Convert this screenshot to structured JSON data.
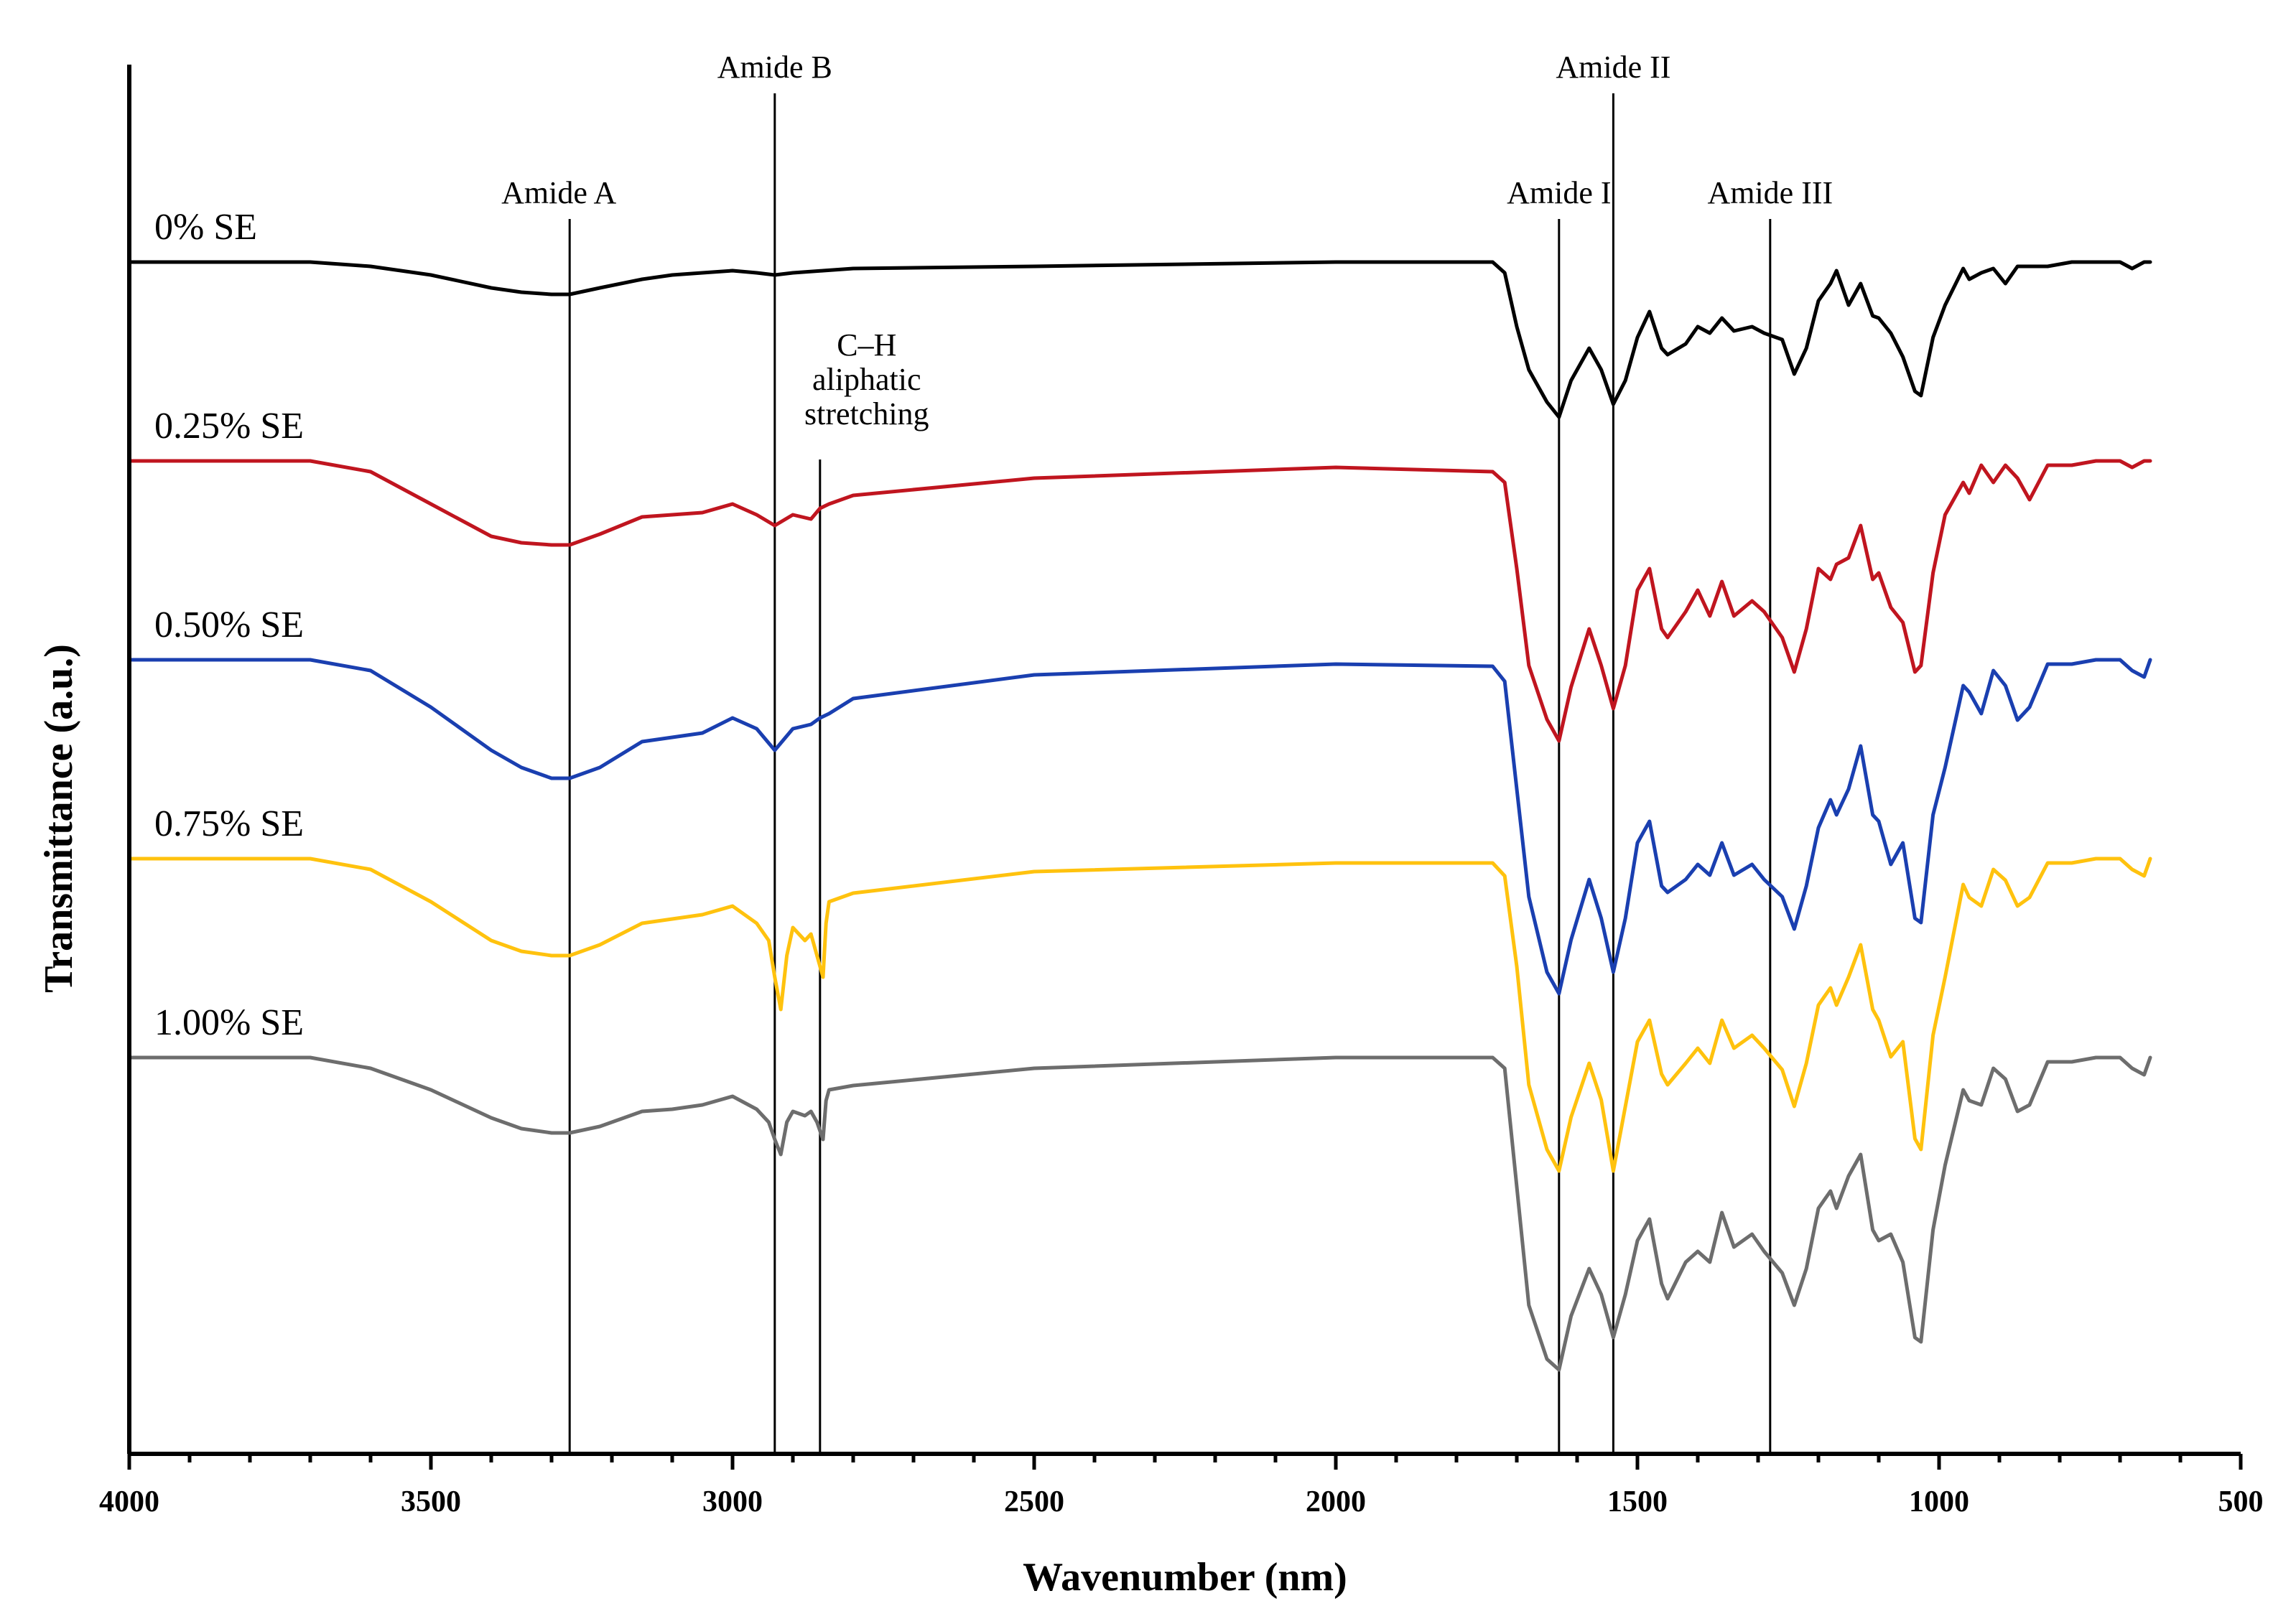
{
  "chart_data": {
    "type": "line",
    "title": "",
    "xlabel": "Wavenumber (nm)",
    "ylabel": "Transmittance (a.u.)",
    "xlim": [
      4000,
      500
    ],
    "x_ticks": [
      4000,
      3500,
      3000,
      2500,
      2000,
      1500,
      1000,
      500
    ],
    "y_units": "a.u. (stacked, offset traces)",
    "ylim": [
      -8,
      1
    ],
    "grid": false,
    "legend": "inline labels at left of each trace",
    "series": [
      {
        "name": "0% SE",
        "color": "#000000",
        "offset": 0,
        "x": [
          4000,
          3700,
          3600,
          3500,
          3400,
          3350,
          3300,
          3270,
          3220,
          3150,
          3100,
          3050,
          3000,
          2960,
          2930,
          2900,
          2850,
          2800,
          2500,
          2000,
          1740,
          1720,
          1700,
          1680,
          1650,
          1630,
          1610,
          1580,
          1560,
          1540,
          1520,
          1500,
          1480,
          1460,
          1450,
          1420,
          1400,
          1380,
          1360,
          1340,
          1310,
          1290,
          1260,
          1240,
          1220,
          1200,
          1180,
          1170,
          1150,
          1130,
          1110,
          1100,
          1080,
          1060,
          1040,
          1030,
          1010,
          990,
          960,
          950,
          930,
          910,
          890,
          870,
          850,
          820,
          780,
          740,
          700,
          680,
          660,
          650
        ],
        "y": [
          0,
          0,
          -0.02,
          -0.06,
          -0.12,
          -0.14,
          -0.15,
          -0.15,
          -0.12,
          -0.08,
          -0.06,
          -0.05,
          -0.04,
          -0.05,
          -0.06,
          -0.05,
          -0.04,
          -0.03,
          -0.02,
          0,
          0,
          -0.05,
          -0.3,
          -0.5,
          -0.65,
          -0.72,
          -0.55,
          -0.4,
          -0.5,
          -0.66,
          -0.55,
          -0.35,
          -0.23,
          -0.4,
          -0.43,
          -0.38,
          -0.3,
          -0.33,
          -0.26,
          -0.32,
          -0.3,
          -0.33,
          -0.36,
          -0.52,
          -0.4,
          -0.18,
          -0.1,
          -0.04,
          -0.2,
          -0.1,
          -0.25,
          -0.26,
          -0.33,
          -0.44,
          -0.6,
          -0.62,
          -0.35,
          -0.2,
          -0.03,
          -0.08,
          -0.05,
          -0.03,
          -0.1,
          -0.02,
          -0.02,
          -0.02,
          0,
          0,
          0,
          -0.03,
          0,
          0
        ]
      },
      {
        "name": "0.25% SE",
        "color": "#C0151F",
        "offset": -1,
        "x": [
          4000,
          3700,
          3600,
          3500,
          3400,
          3350,
          3300,
          3270,
          3220,
          3150,
          3100,
          3050,
          3000,
          2960,
          2930,
          2900,
          2870,
          2855,
          2840,
          2800,
          2500,
          2000,
          1740,
          1720,
          1700,
          1680,
          1650,
          1630,
          1610,
          1580,
          1560,
          1540,
          1520,
          1500,
          1480,
          1460,
          1450,
          1420,
          1400,
          1380,
          1360,
          1340,
          1310,
          1290,
          1260,
          1240,
          1220,
          1200,
          1180,
          1170,
          1150,
          1130,
          1110,
          1100,
          1080,
          1060,
          1040,
          1030,
          1010,
          990,
          960,
          950,
          930,
          910,
          890,
          870,
          850,
          820,
          780,
          740,
          700,
          680,
          660,
          650
        ],
        "y": [
          0,
          0,
          -0.05,
          -0.2,
          -0.35,
          -0.38,
          -0.39,
          -0.39,
          -0.34,
          -0.26,
          -0.25,
          -0.24,
          -0.2,
          -0.25,
          -0.3,
          -0.25,
          -0.27,
          -0.22,
          -0.2,
          -0.16,
          -0.08,
          -0.03,
          -0.05,
          -0.1,
          -0.5,
          -0.95,
          -1.2,
          -1.3,
          -1.05,
          -0.78,
          -0.95,
          -1.15,
          -0.95,
          -0.6,
          -0.5,
          -0.78,
          -0.82,
          -0.7,
          -0.6,
          -0.72,
          -0.56,
          -0.72,
          -0.65,
          -0.7,
          -0.82,
          -0.98,
          -0.78,
          -0.5,
          -0.55,
          -0.48,
          -0.45,
          -0.3,
          -0.55,
          -0.52,
          -0.68,
          -0.75,
          -0.98,
          -0.95,
          -0.52,
          -0.25,
          -0.1,
          -0.15,
          -0.02,
          -0.1,
          -0.02,
          -0.08,
          -0.18,
          -0.02,
          -0.02,
          0,
          0,
          -0.03,
          0,
          0
        ]
      },
      {
        "name": "0.50% SE",
        "color": "#1A3FB0",
        "offset": -2,
        "x": [
          4000,
          3700,
          3600,
          3500,
          3400,
          3350,
          3300,
          3270,
          3220,
          3150,
          3100,
          3050,
          3000,
          2960,
          2930,
          2900,
          2870,
          2855,
          2840,
          2800,
          2500,
          2000,
          1740,
          1720,
          1700,
          1680,
          1650,
          1630,
          1610,
          1580,
          1560,
          1540,
          1520,
          1500,
          1480,
          1460,
          1450,
          1420,
          1400,
          1380,
          1360,
          1340,
          1310,
          1290,
          1260,
          1240,
          1220,
          1200,
          1180,
          1170,
          1150,
          1130,
          1110,
          1100,
          1080,
          1060,
          1040,
          1030,
          1010,
          990,
          960,
          950,
          930,
          910,
          890,
          870,
          850,
          820,
          780,
          740,
          700,
          680,
          660,
          650
        ],
        "y": [
          0,
          0,
          -0.05,
          -0.22,
          -0.42,
          -0.5,
          -0.55,
          -0.55,
          -0.5,
          -0.38,
          -0.36,
          -0.34,
          -0.27,
          -0.32,
          -0.42,
          -0.32,
          -0.3,
          -0.27,
          -0.25,
          -0.18,
          -0.07,
          -0.02,
          -0.03,
          -0.1,
          -0.6,
          -1.1,
          -1.45,
          -1.55,
          -1.3,
          -1.02,
          -1.2,
          -1.45,
          -1.2,
          -0.85,
          -0.75,
          -1.05,
          -1.08,
          -1.02,
          -0.95,
          -1.0,
          -0.85,
          -1.0,
          -0.95,
          -1.02,
          -1.1,
          -1.25,
          -1.05,
          -0.78,
          -0.65,
          -0.72,
          -0.6,
          -0.4,
          -0.72,
          -0.75,
          -0.95,
          -0.85,
          -1.2,
          -1.22,
          -0.72,
          -0.5,
          -0.12,
          -0.15,
          -0.25,
          -0.05,
          -0.12,
          -0.28,
          -0.22,
          -0.02,
          -0.02,
          0,
          0,
          -0.05,
          -0.08,
          0
        ]
      },
      {
        "name": "0.75% SE",
        "color": "#FFC20E",
        "offset": -3,
        "x": [
          4000,
          3700,
          3600,
          3500,
          3400,
          3350,
          3300,
          3270,
          3220,
          3150,
          3100,
          3050,
          3000,
          2960,
          2940,
          2930,
          2920,
          2910,
          2900,
          2880,
          2870,
          2860,
          2850,
          2845,
          2840,
          2800,
          2500,
          2000,
          1740,
          1720,
          1700,
          1680,
          1650,
          1630,
          1610,
          1580,
          1560,
          1540,
          1520,
          1500,
          1480,
          1460,
          1450,
          1420,
          1400,
          1380,
          1360,
          1340,
          1310,
          1290,
          1260,
          1240,
          1220,
          1200,
          1180,
          1170,
          1150,
          1130,
          1110,
          1100,
          1080,
          1060,
          1040,
          1030,
          1010,
          990,
          960,
          950,
          930,
          910,
          890,
          870,
          850,
          820,
          780,
          740,
          700,
          680,
          660,
          650
        ],
        "y": [
          0,
          0,
          -0.05,
          -0.2,
          -0.38,
          -0.43,
          -0.45,
          -0.45,
          -0.4,
          -0.3,
          -0.28,
          -0.26,
          -0.22,
          -0.3,
          -0.38,
          -0.55,
          -0.7,
          -0.45,
          -0.32,
          -0.38,
          -0.35,
          -0.45,
          -0.55,
          -0.3,
          -0.2,
          -0.16,
          -0.06,
          -0.02,
          -0.02,
          -0.08,
          -0.5,
          -1.05,
          -1.35,
          -1.45,
          -1.2,
          -0.95,
          -1.12,
          -1.45,
          -1.15,
          -0.85,
          -0.75,
          -1.0,
          -1.05,
          -0.95,
          -0.88,
          -0.95,
          -0.75,
          -0.88,
          -0.82,
          -0.88,
          -0.98,
          -1.15,
          -0.95,
          -0.68,
          -0.6,
          -0.68,
          -0.55,
          -0.4,
          -0.7,
          -0.75,
          -0.92,
          -0.85,
          -1.3,
          -1.35,
          -0.82,
          -0.55,
          -0.12,
          -0.18,
          -0.22,
          -0.05,
          -0.1,
          -0.22,
          -0.18,
          -0.02,
          -0.02,
          0,
          0,
          -0.05,
          -0.08,
          0
        ]
      },
      {
        "name": "1.00% SE",
        "color": "#6D6D6D",
        "offset": -4,
        "x": [
          4000,
          3700,
          3600,
          3500,
          3400,
          3350,
          3300,
          3270,
          3220,
          3150,
          3100,
          3050,
          3000,
          2960,
          2940,
          2930,
          2920,
          2910,
          2900,
          2880,
          2870,
          2860,
          2850,
          2845,
          2840,
          2800,
          2500,
          2000,
          1740,
          1720,
          1700,
          1680,
          1650,
          1630,
          1610,
          1580,
          1560,
          1540,
          1520,
          1500,
          1480,
          1460,
          1450,
          1420,
          1400,
          1380,
          1360,
          1340,
          1310,
          1290,
          1260,
          1240,
          1220,
          1200,
          1180,
          1170,
          1150,
          1130,
          1110,
          1100,
          1080,
          1060,
          1040,
          1030,
          1010,
          990,
          960,
          950,
          930,
          910,
          890,
          870,
          850,
          820,
          780,
          740,
          700,
          680,
          660,
          650
        ],
        "y": [
          0,
          0,
          -0.05,
          -0.15,
          -0.28,
          -0.33,
          -0.35,
          -0.35,
          -0.32,
          -0.25,
          -0.24,
          -0.22,
          -0.18,
          -0.24,
          -0.3,
          -0.38,
          -0.45,
          -0.3,
          -0.25,
          -0.27,
          -0.25,
          -0.3,
          -0.38,
          -0.2,
          -0.15,
          -0.13,
          -0.05,
          0,
          0,
          -0.05,
          -0.6,
          -1.15,
          -1.4,
          -1.45,
          -1.2,
          -0.98,
          -1.1,
          -1.3,
          -1.1,
          -0.85,
          -0.75,
          -1.05,
          -1.12,
          -0.95,
          -0.9,
          -0.95,
          -0.72,
          -0.88,
          -0.82,
          -0.9,
          -1.0,
          -1.15,
          -0.98,
          -0.7,
          -0.62,
          -0.7,
          -0.55,
          -0.45,
          -0.8,
          -0.85,
          -0.82,
          -0.95,
          -1.3,
          -1.32,
          -0.8,
          -0.5,
          -0.15,
          -0.2,
          -0.22,
          -0.05,
          -0.1,
          -0.25,
          -0.22,
          -0.02,
          -0.02,
          0,
          0,
          -0.05,
          -0.08,
          0
        ]
      }
    ],
    "annotations": [
      {
        "text": [
          "Amide A"
        ],
        "x": 3270,
        "line_from_series": 0
      },
      {
        "text": [
          "Amide B"
        ],
        "x": 2930,
        "line_from_series": -1
      },
      {
        "text": [
          "C–H",
          "aliphatic",
          "stretching"
        ],
        "x": 2855,
        "line_from_series": 1
      },
      {
        "text": [
          "Amide I"
        ],
        "x": 1630,
        "line_from_series": 0
      },
      {
        "text": [
          "Amide II"
        ],
        "x": 1540,
        "line_from_series": -1
      },
      {
        "text": [
          "Amide III"
        ],
        "x": 1280,
        "line_from_series": 0
      }
    ]
  }
}
